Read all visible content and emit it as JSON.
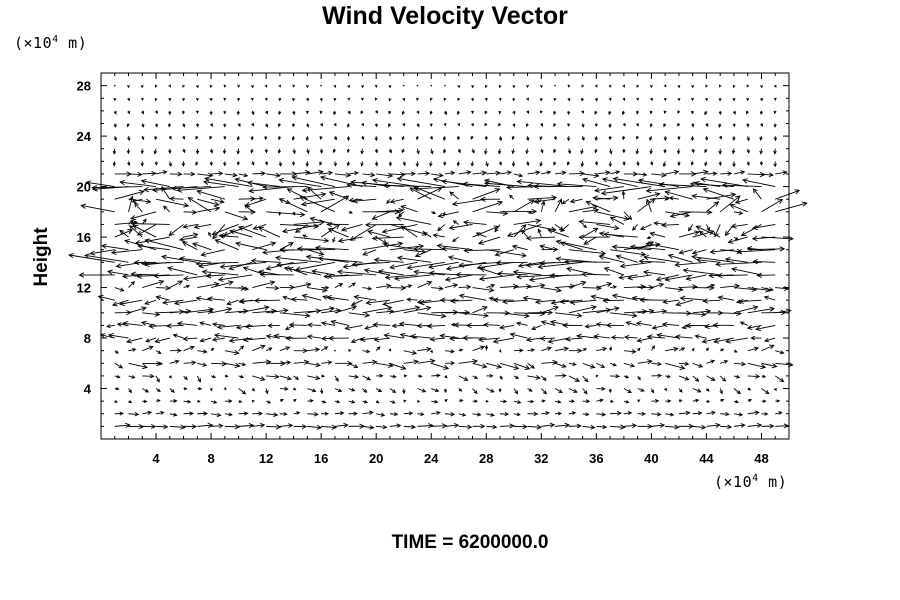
{
  "chart_data": {
    "type": "vector-field",
    "title": "Wind Velocity Vector",
    "ylabel": "Height",
    "y_unit": {
      "prefix": "(×10",
      "exp": "4",
      "suffix": " m)"
    },
    "x_unit": {
      "prefix": "(×10",
      "exp": "4",
      "suffix": " m)"
    },
    "footer": "TIME = 6200000.0",
    "xlim": [
      0,
      50
    ],
    "ylim": [
      0,
      29
    ],
    "xticks": [
      4,
      8,
      12,
      16,
      20,
      24,
      28,
      32,
      36,
      40,
      44,
      48
    ],
    "yticks": [
      4,
      8,
      12,
      16,
      20,
      24,
      28
    ],
    "xtick_labels": [
      "4",
      "8",
      "12",
      "16",
      "20",
      "24",
      "28",
      "32",
      "36",
      "40",
      "44",
      "48"
    ],
    "ytick_labels": [
      "4",
      "8",
      "12",
      "16",
      "20",
      "24",
      "28"
    ],
    "grid": false,
    "bands": [
      {
        "y": 21,
        "u": 0.9,
        "v": 0.0,
        "var": 0.3
      },
      {
        "y": 20,
        "u": -2.8,
        "v": 0.1,
        "var": 1.0
      },
      {
        "y": 19,
        "u": -1.2,
        "v": 0.2,
        "var": 1.2
      },
      {
        "y": 18,
        "u": 1.4,
        "v": 0.3,
        "var": 1.4
      },
      {
        "y": 17,
        "u": -1.6,
        "v": -0.3,
        "var": 1.4
      },
      {
        "y": 16,
        "u": -1.3,
        "v": 0.2,
        "var": 1.2
      },
      {
        "y": 15,
        "u": -1.9,
        "v": 0.1,
        "var": 1.0
      },
      {
        "y": 14,
        "u": -2.4,
        "v": 0.0,
        "var": 0.9
      },
      {
        "y": 13,
        "u": -2.0,
        "v": 0.1,
        "var": 0.8
      },
      {
        "y": 12,
        "u": 1.0,
        "v": 0.1,
        "var": 0.6
      },
      {
        "y": 11,
        "u": -1.3,
        "v": 0.0,
        "var": 0.6
      },
      {
        "y": 10,
        "u": 1.6,
        "v": 0.1,
        "var": 0.6
      },
      {
        "y": 9,
        "u": -1.0,
        "v": 0.0,
        "var": 0.5
      },
      {
        "y": 8,
        "u": -1.2,
        "v": 0.0,
        "var": 0.5
      },
      {
        "y": 7,
        "u": 0.5,
        "v": 0.1,
        "var": 0.5
      },
      {
        "y": 6,
        "u": 0.9,
        "v": -0.1,
        "var": 0.5
      },
      {
        "y": 5,
        "u": 0.5,
        "v": -0.2,
        "var": 0.4
      },
      {
        "y": 4,
        "u": 0.3,
        "v": -0.2,
        "var": 0.3
      },
      {
        "y": 3,
        "u": 0.3,
        "v": 0.0,
        "var": 0.2
      },
      {
        "y": 2,
        "u": 0.6,
        "v": 0.0,
        "var": 0.2
      },
      {
        "y": 1,
        "u": 0.9,
        "v": 0.0,
        "var": 0.2
      },
      {
        "y": 22,
        "u": 0.0,
        "v": -0.3,
        "var": 0.1
      },
      {
        "y": 23,
        "u": 0.0,
        "v": -0.3,
        "var": 0.1
      },
      {
        "y": 24,
        "u": 0.0,
        "v": -0.25,
        "var": 0.1
      },
      {
        "y": 25,
        "u": 0.0,
        "v": -0.2,
        "var": 0.1
      },
      {
        "y": 26,
        "u": 0.0,
        "v": -0.2,
        "var": 0.1
      },
      {
        "y": 27,
        "u": 0.0,
        "v": -0.15,
        "var": 0.05
      },
      {
        "y": 28,
        "u": 0.0,
        "v": -0.1,
        "var": 0.05
      }
    ]
  }
}
